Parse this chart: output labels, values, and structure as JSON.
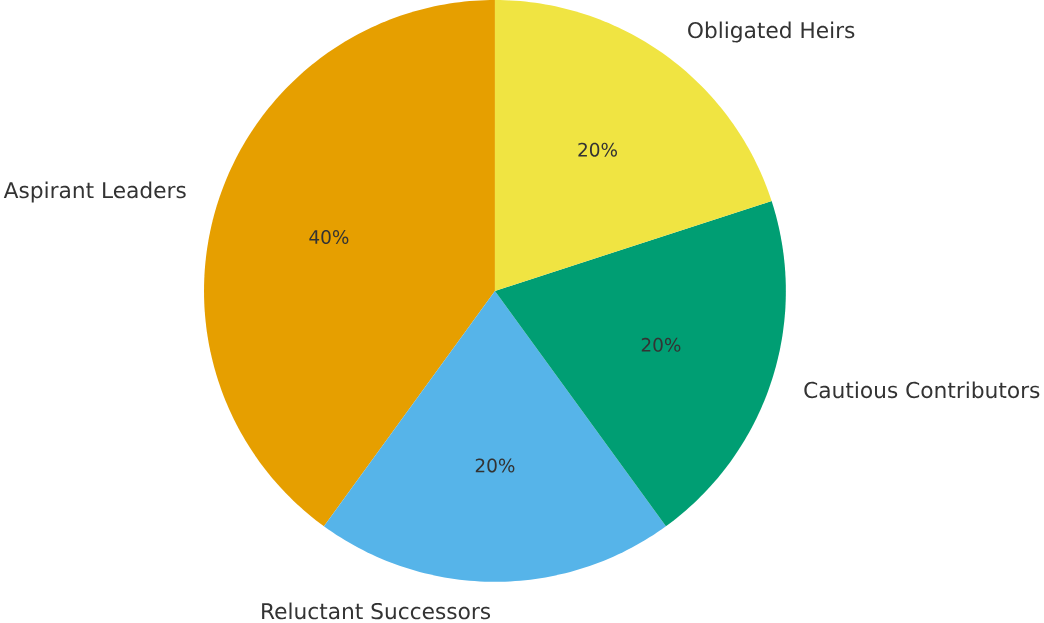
{
  "chart_data": {
    "type": "pie",
    "categories": [
      "Aspirant Leaders",
      "Reluctant Successors",
      "Cautious Contributors",
      "Obligated Heirs"
    ],
    "values": [
      40,
      20,
      20,
      20
    ],
    "colors": [
      "#e69f00",
      "#56b4e9",
      "#009e73",
      "#f0e442"
    ],
    "value_labels": [
      "40%",
      "20%",
      "20%",
      "20%"
    ]
  }
}
